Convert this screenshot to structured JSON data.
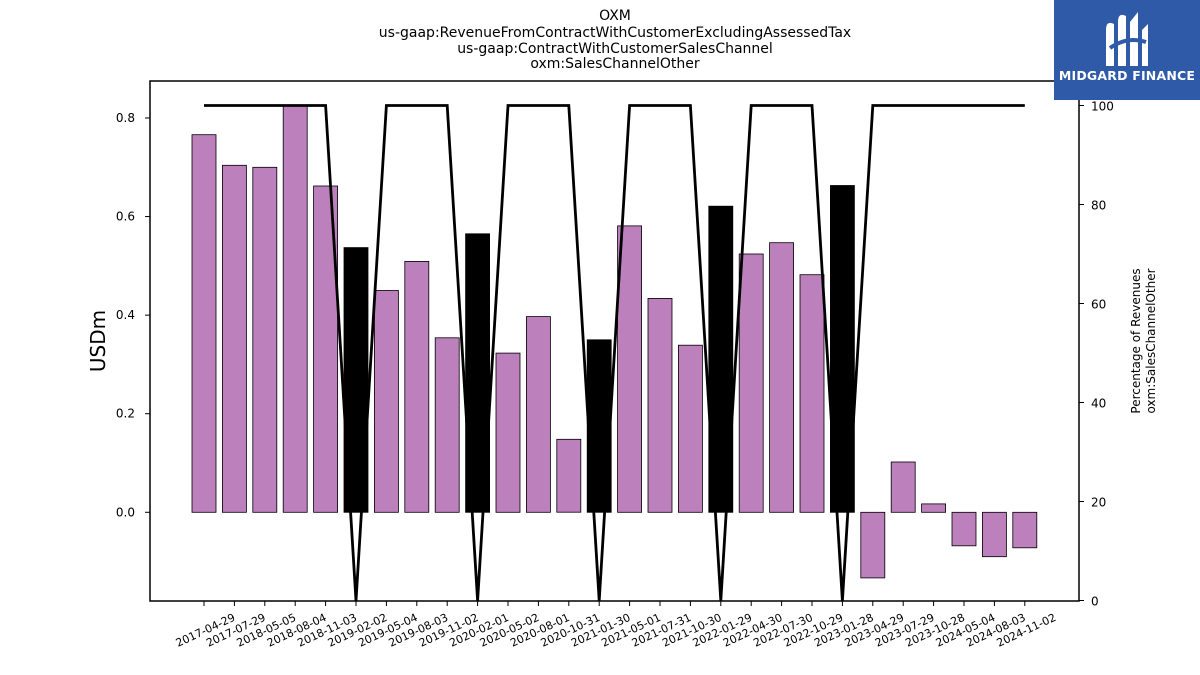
{
  "logo": {
    "text": "MIDGARD FINANCE",
    "color": "#2f5aa8"
  },
  "chart_data": {
    "type": "bar",
    "title_lines": [
      "OXM",
      "us-gaap:RevenueFromContractWithCustomerExcludingAssessedTax",
      "us-gaap:ContractWithCustomerSalesChannel",
      "oxm:SalesChannelOther"
    ],
    "ylabel": "USDm",
    "y2label_lines": [
      "Percentage of Revenues",
      "oxm:SalesChannelOther"
    ],
    "ylim": [
      -0.18,
      0.875
    ],
    "y2lim": [
      0,
      100
    ],
    "yticks": [
      "0.0",
      "0.2",
      "0.4",
      "0.6",
      "0.8"
    ],
    "y2ticks": [
      "0",
      "20",
      "40",
      "60",
      "80",
      "100"
    ],
    "categories": [
      "2017-04-29",
      "2017-07-29",
      "2018-05-05",
      "2018-08-04",
      "2018-11-03",
      "2019-02-02",
      "2019-05-04",
      "2019-08-03",
      "2019-11-02",
      "2020-02-01",
      "2020-05-02",
      "2020-08-01",
      "2020-10-31",
      "2021-01-30",
      "2021-05-01",
      "2021-07-31",
      "2021-10-30",
      "2022-01-29",
      "2022-04-30",
      "2022-07-30",
      "2022-10-29",
      "2023-01-28",
      "2023-04-29",
      "2023-07-29",
      "2023-10-28",
      "2024-05-04",
      "2024-08-03",
      "2024-11-02"
    ],
    "values": [
      0.766,
      0.704,
      0.7,
      0.826,
      0.662,
      0.537,
      0.45,
      0.509,
      0.354,
      0.565,
      0.323,
      0.397,
      0.148,
      0.35,
      0.581,
      0.434,
      0.339,
      0.621,
      0.524,
      0.547,
      0.482,
      0.663,
      -0.133,
      0.102,
      0.017,
      -0.068,
      -0.09,
      -0.072
    ],
    "percent": [
      100,
      100,
      100,
      100,
      100,
      0,
      100,
      100,
      100,
      0,
      100,
      100,
      100,
      0,
      100,
      100,
      100,
      0,
      100,
      100,
      100,
      0,
      100,
      100,
      100,
      100,
      100,
      100
    ],
    "bar_colors": {
      "normal": "#bc80bd",
      "highlight": "#000000"
    },
    "line_color": "#000000",
    "grid": false
  }
}
